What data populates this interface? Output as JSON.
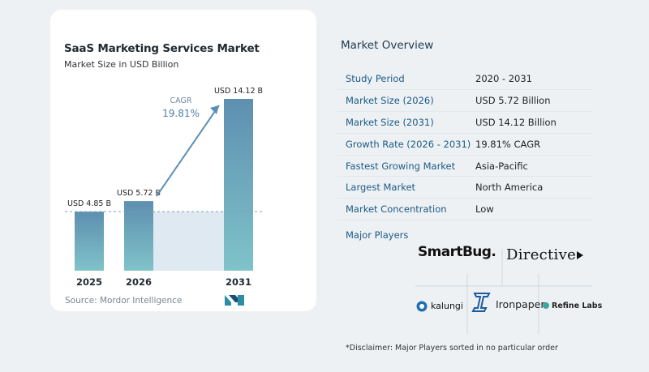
{
  "chart_data": {
    "type": "bar",
    "title": "SaaS Marketing Services Market",
    "subtitle": "Market Size in USD Billion",
    "categories": [
      "2025",
      "2026",
      "2031"
    ],
    "values": [
      4.85,
      5.72,
      14.12
    ],
    "data_labels": [
      "USD 4.85 B",
      "USD 5.72 B",
      "USD 14.12 B"
    ],
    "cagr_label": "CAGR",
    "cagr_value": "19.81%",
    "bar_color_top": "#5e8fb0",
    "bar_color_bottom": "#7fc3c9",
    "ylim": [
      0,
      16
    ]
  },
  "source": "Source: Mordor Intelligence",
  "overview": {
    "title": "Market Overview",
    "rows": [
      {
        "label": "Study Period",
        "value": "2020 - 2031"
      },
      {
        "label": "Market Size (2026)",
        "value": "USD 5.72 Billion"
      },
      {
        "label": "Market Size (2031)",
        "value": "USD 14.12 Billion"
      },
      {
        "label": "Growth Rate (2026 - 2031)",
        "value": "19.81% CAGR"
      },
      {
        "label": "Fastest Growing Market",
        "value": "Asia-Pacific"
      },
      {
        "label": "Largest Market",
        "value": "North America"
      },
      {
        "label": "Market Concentration",
        "value": "Low"
      }
    ]
  },
  "players": {
    "label": "Major Players",
    "names": [
      "SmartBug.",
      "Directive",
      "kalungi",
      "Ironpaper",
      "Refine Labs"
    ]
  },
  "disclaimer": "*Disclaimer: Major Players sorted in no particular order"
}
